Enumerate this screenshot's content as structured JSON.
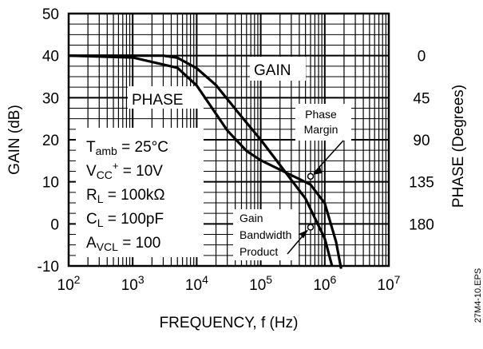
{
  "chart_data": {
    "type": "line",
    "xlabel": "FREQUENCY, f (Hz)",
    "ylabel": "GAIN (dB)",
    "y2label": "PHASE (Degrees)",
    "x_scale": "log",
    "xlim": [
      100,
      10000000
    ],
    "ylim": [
      -10,
      50
    ],
    "y2lim": [
      0,
      180
    ],
    "grid": true,
    "x_ticks": [
      {
        "base": "10",
        "exp": "2"
      },
      {
        "base": "10",
        "exp": "3"
      },
      {
        "base": "10",
        "exp": "4"
      },
      {
        "base": "10",
        "exp": "5"
      },
      {
        "base": "10",
        "exp": "6"
      },
      {
        "base": "10",
        "exp": "7"
      }
    ],
    "y_ticks": [
      "50",
      "40",
      "30",
      "20",
      "10",
      "0",
      "-10"
    ],
    "y2_ticks": [
      "0",
      "45",
      "90",
      "135",
      "180"
    ],
    "series": [
      {
        "name": "GAIN",
        "axis": "left",
        "x": [
          100,
          1000,
          3000,
          5000,
          10000,
          20000,
          50000,
          100000,
          200000,
          500000,
          1000000,
          1300000
        ],
        "y": [
          40,
          40,
          40,
          39.5,
          37,
          33,
          25.5,
          20,
          14,
          6,
          -3.5,
          -10
        ]
      },
      {
        "name": "PHASE",
        "axis": "right",
        "x": [
          100,
          1000,
          5000,
          10000,
          30000,
          60000,
          100000,
          200000,
          400000,
          600000,
          1000000,
          1500000,
          1800000
        ],
        "y": [
          0,
          2,
          13,
          32,
          80,
          102,
          112,
          122,
          132,
          138,
          158,
          199,
          228
        ]
      }
    ],
    "annotations": {
      "gain_label": "GAIN",
      "phase_label": "PHASE",
      "phase_margin": [
        "Phase",
        "Margin"
      ],
      "gain_bandwidth": [
        "Gain",
        "Bandwidth",
        "Product"
      ]
    },
    "conditions": [
      {
        "main": "T",
        "sub": "amb",
        "sup": "",
        "rest": " = 25°C"
      },
      {
        "main": "V",
        "sub": "CC",
        "sup": "+",
        "rest": " = 10V"
      },
      {
        "main": "R",
        "sub": "L",
        "sup": "",
        "rest": " = 100kΩ"
      },
      {
        "main": "C",
        "sub": "L",
        "sup": "",
        "rest": " = 100pF"
      },
      {
        "main": "A",
        "sub": "VCL",
        "sup": "",
        "rest": " = 100"
      }
    ],
    "figure_id": "27M4-10.EPS"
  }
}
